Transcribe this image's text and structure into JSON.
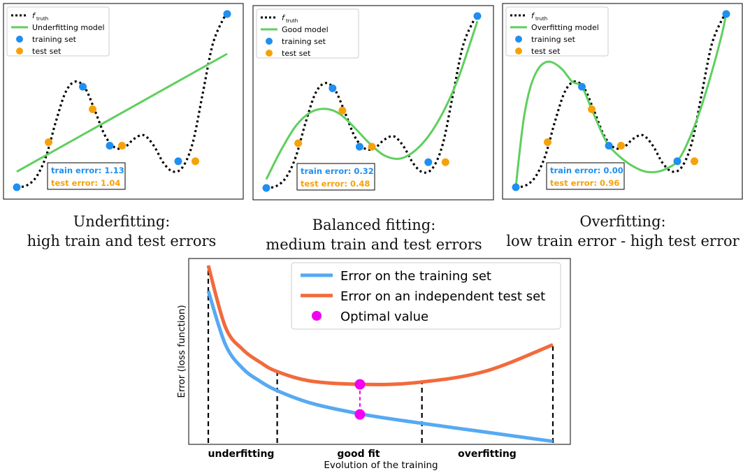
{
  "colors": {
    "truth": "#000000",
    "model": "#5ecf5e",
    "train": "#1f8ff0",
    "test": "#f5a20a",
    "curve_train": "#57a9f2",
    "curve_test": "#f26a3c",
    "optimal": "#f200f2"
  },
  "legend_common": {
    "truth_label": "f",
    "truth_subscript": "truth",
    "train_label": "training set",
    "test_label": "test set"
  },
  "chart_data": [
    {
      "type": "scatter",
      "model_label": "Underfitting model",
      "train_error_label": "train error: 1.13",
      "test_error_label": "test error: 1.04",
      "caption_line1": "Underfitting:",
      "caption_line2": "high train and test errors",
      "training_points": [
        [
          0.0,
          0.0
        ],
        [
          2.7,
          0.58
        ],
        [
          3.8,
          0.24
        ],
        [
          6.6,
          0.15
        ],
        [
          8.6,
          1.0
        ]
      ],
      "test_points": [
        [
          1.3,
          0.26
        ],
        [
          3.1,
          0.45
        ],
        [
          4.3,
          0.24
        ],
        [
          7.3,
          0.15
        ]
      ],
      "truth_curve": [
        [
          0.0,
          0.0
        ],
        [
          0.4,
          0.01
        ],
        [
          0.8,
          0.06
        ],
        [
          1.2,
          0.18
        ],
        [
          1.6,
          0.38
        ],
        [
          2.0,
          0.55
        ],
        [
          2.4,
          0.61
        ],
        [
          2.8,
          0.57
        ],
        [
          3.2,
          0.44
        ],
        [
          3.6,
          0.3
        ],
        [
          4.0,
          0.23
        ],
        [
          4.4,
          0.23
        ],
        [
          4.8,
          0.28
        ],
        [
          5.2,
          0.3
        ],
        [
          5.6,
          0.24
        ],
        [
          6.0,
          0.14
        ],
        [
          6.4,
          0.09
        ],
        [
          6.8,
          0.12
        ],
        [
          7.2,
          0.26
        ],
        [
          7.6,
          0.54
        ],
        [
          8.0,
          0.82
        ],
        [
          8.4,
          0.96
        ],
        [
          8.6,
          1.0
        ]
      ],
      "model_curve": [
        [
          0.0,
          0.09
        ],
        [
          8.6,
          0.77
        ]
      ]
    },
    {
      "type": "scatter",
      "model_label": "Good model",
      "train_error_label": "train error: 0.32",
      "test_error_label": "test error: 0.48",
      "caption_line1": "Balanced fitting:",
      "caption_line2": "medium train and test errors",
      "training_points": [
        [
          0.0,
          0.0
        ],
        [
          2.7,
          0.58
        ],
        [
          3.8,
          0.24
        ],
        [
          6.6,
          0.15
        ],
        [
          8.6,
          1.0
        ]
      ],
      "test_points": [
        [
          1.3,
          0.26
        ],
        [
          3.1,
          0.45
        ],
        [
          4.3,
          0.24
        ],
        [
          7.3,
          0.15
        ]
      ],
      "truth_curve": [
        [
          0.0,
          0.0
        ],
        [
          0.4,
          0.01
        ],
        [
          0.8,
          0.06
        ],
        [
          1.2,
          0.18
        ],
        [
          1.6,
          0.38
        ],
        [
          2.0,
          0.55
        ],
        [
          2.4,
          0.61
        ],
        [
          2.8,
          0.57
        ],
        [
          3.2,
          0.44
        ],
        [
          3.6,
          0.3
        ],
        [
          4.0,
          0.23
        ],
        [
          4.4,
          0.23
        ],
        [
          4.8,
          0.28
        ],
        [
          5.2,
          0.3
        ],
        [
          5.6,
          0.24
        ],
        [
          6.0,
          0.14
        ],
        [
          6.4,
          0.09
        ],
        [
          6.8,
          0.12
        ],
        [
          7.2,
          0.26
        ],
        [
          7.6,
          0.54
        ],
        [
          8.0,
          0.82
        ],
        [
          8.4,
          0.96
        ],
        [
          8.6,
          1.0
        ]
      ],
      "model_curve": [
        [
          0.0,
          0.05
        ],
        [
          0.6,
          0.22
        ],
        [
          1.2,
          0.36
        ],
        [
          1.8,
          0.44
        ],
        [
          2.4,
          0.46
        ],
        [
          3.0,
          0.43
        ],
        [
          3.6,
          0.35
        ],
        [
          4.2,
          0.26
        ],
        [
          4.8,
          0.19
        ],
        [
          5.4,
          0.17
        ],
        [
          6.0,
          0.21
        ],
        [
          6.6,
          0.3
        ],
        [
          7.2,
          0.44
        ],
        [
          7.8,
          0.63
        ],
        [
          8.3,
          0.84
        ],
        [
          8.6,
          0.97
        ]
      ]
    },
    {
      "type": "scatter",
      "model_label": "Overfitting model",
      "train_error_label": "train error: 0.00",
      "test_error_label": "test error: 0.96",
      "caption_line1": "Overfitting:",
      "caption_line2": "low train error - high test error",
      "training_points": [
        [
          0.0,
          0.0
        ],
        [
          2.7,
          0.58
        ],
        [
          3.8,
          0.24
        ],
        [
          6.6,
          0.15
        ],
        [
          8.6,
          1.0
        ]
      ],
      "test_points": [
        [
          1.3,
          0.26
        ],
        [
          3.1,
          0.45
        ],
        [
          4.3,
          0.24
        ],
        [
          7.3,
          0.15
        ]
      ],
      "truth_curve": [
        [
          0.0,
          0.0
        ],
        [
          0.4,
          0.01
        ],
        [
          0.8,
          0.06
        ],
        [
          1.2,
          0.18
        ],
        [
          1.6,
          0.38
        ],
        [
          2.0,
          0.55
        ],
        [
          2.4,
          0.61
        ],
        [
          2.8,
          0.57
        ],
        [
          3.2,
          0.44
        ],
        [
          3.6,
          0.3
        ],
        [
          4.0,
          0.23
        ],
        [
          4.4,
          0.23
        ],
        [
          4.8,
          0.28
        ],
        [
          5.2,
          0.3
        ],
        [
          5.6,
          0.24
        ],
        [
          6.0,
          0.14
        ],
        [
          6.4,
          0.09
        ],
        [
          6.8,
          0.12
        ],
        [
          7.2,
          0.26
        ],
        [
          7.6,
          0.54
        ],
        [
          8.0,
          0.82
        ],
        [
          8.4,
          0.96
        ],
        [
          8.6,
          1.0
        ]
      ],
      "model_curve": [
        [
          0.0,
          0.0
        ],
        [
          0.15,
          0.2
        ],
        [
          0.35,
          0.42
        ],
        [
          0.6,
          0.58
        ],
        [
          0.9,
          0.68
        ],
        [
          1.2,
          0.72
        ],
        [
          1.5,
          0.72
        ],
        [
          1.9,
          0.68
        ],
        [
          2.3,
          0.61
        ],
        [
          2.7,
          0.58
        ],
        [
          3.1,
          0.45
        ],
        [
          3.5,
          0.32
        ],
        [
          3.8,
          0.24
        ],
        [
          4.3,
          0.17
        ],
        [
          4.8,
          0.12
        ],
        [
          5.3,
          0.09
        ],
        [
          5.8,
          0.09
        ],
        [
          6.2,
          0.11
        ],
        [
          6.6,
          0.15
        ],
        [
          7.0,
          0.25
        ],
        [
          7.5,
          0.43
        ],
        [
          8.0,
          0.66
        ],
        [
          8.4,
          0.87
        ],
        [
          8.6,
          1.0
        ]
      ]
    },
    {
      "type": "line",
      "ylabel": "Error (loss function)",
      "xlabel": "Evolution of the training",
      "region_labels": [
        "underfitting",
        "good fit",
        "overfitting"
      ],
      "legend": [
        "Error on the training set",
        "Error on an independent test set",
        "Optimal value"
      ],
      "series": [
        {
          "name": "Error on the training set",
          "x": [
            0.0,
            0.05,
            0.1,
            0.15,
            0.2,
            0.3,
            0.45,
            0.6,
            0.8,
            1.0
          ],
          "values": [
            0.96,
            0.62,
            0.47,
            0.39,
            0.33,
            0.25,
            0.18,
            0.13,
            0.07,
            0.01
          ]
        },
        {
          "name": "Error on an independent test set",
          "x": [
            0.0,
            0.05,
            0.1,
            0.15,
            0.2,
            0.3,
            0.45,
            0.6,
            0.8,
            1.0
          ],
          "values": [
            1.12,
            0.73,
            0.59,
            0.51,
            0.45,
            0.39,
            0.37,
            0.38,
            0.45,
            0.62
          ]
        }
      ],
      "optimal": {
        "x": 0.44,
        "train": 0.18,
        "test": 0.37
      },
      "region_bounds": [
        0.0,
        0.2,
        0.62,
        1.0
      ]
    }
  ]
}
